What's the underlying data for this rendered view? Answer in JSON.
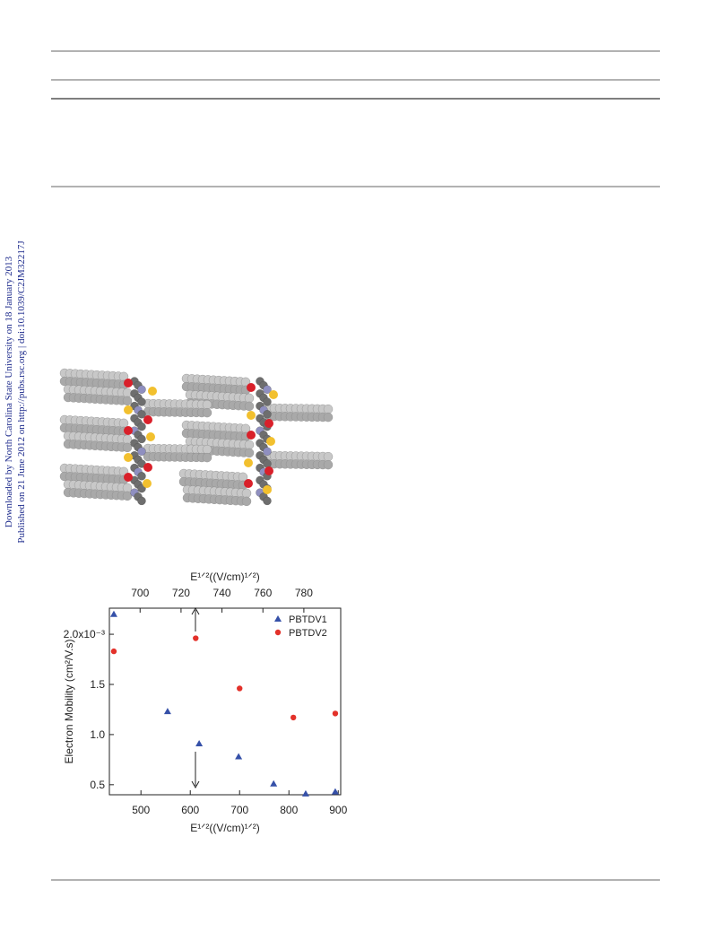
{
  "sidebar": {
    "line1": "Downloaded by North Carolina State University on 18 January 2013",
    "line2": "Published on 21 June 2012 on http://pubs.rsc.org | doi:10.1039/C2JM32217J"
  },
  "chart_data": {
    "type": "scatter",
    "xlabel": "E¹ᐟ²((V/cm)¹ᐟ²)",
    "x2label": "E¹ᐟ²((V/cm)¹ᐟ²)",
    "ylabel": "Electron Mobility (cm²/V.s)",
    "xlim": [
      436,
      905
    ],
    "xticks": [
      500,
      600,
      700,
      800,
      900
    ],
    "x2lim": [
      685,
      798
    ],
    "x2ticks": [
      700,
      720,
      740,
      760,
      780
    ],
    "ylim": [
      0.4,
      2.26
    ],
    "yticks": [
      0.5,
      {
        "value": 1,
        "label": "1.0"
      },
      1.5,
      {
        "value": 2,
        "label": "2.0x10⁻³"
      }
    ],
    "legend": "upper right",
    "series": [
      {
        "name": "PBTDV1",
        "color": "#3550a8",
        "marker": "triangle",
        "x": [
          445,
          554,
          618,
          698,
          769,
          834,
          894
        ],
        "values": [
          2.2,
          1.23,
          0.91,
          0.78,
          0.51,
          0.41,
          0.43
        ]
      },
      {
        "name": "PBTDV2",
        "color": "#e3312a",
        "marker": "circle",
        "x": [
          445,
          611,
          700,
          809,
          894
        ],
        "values": [
          1.83,
          1.96,
          1.46,
          1.17,
          1.21
        ]
      }
    ]
  }
}
